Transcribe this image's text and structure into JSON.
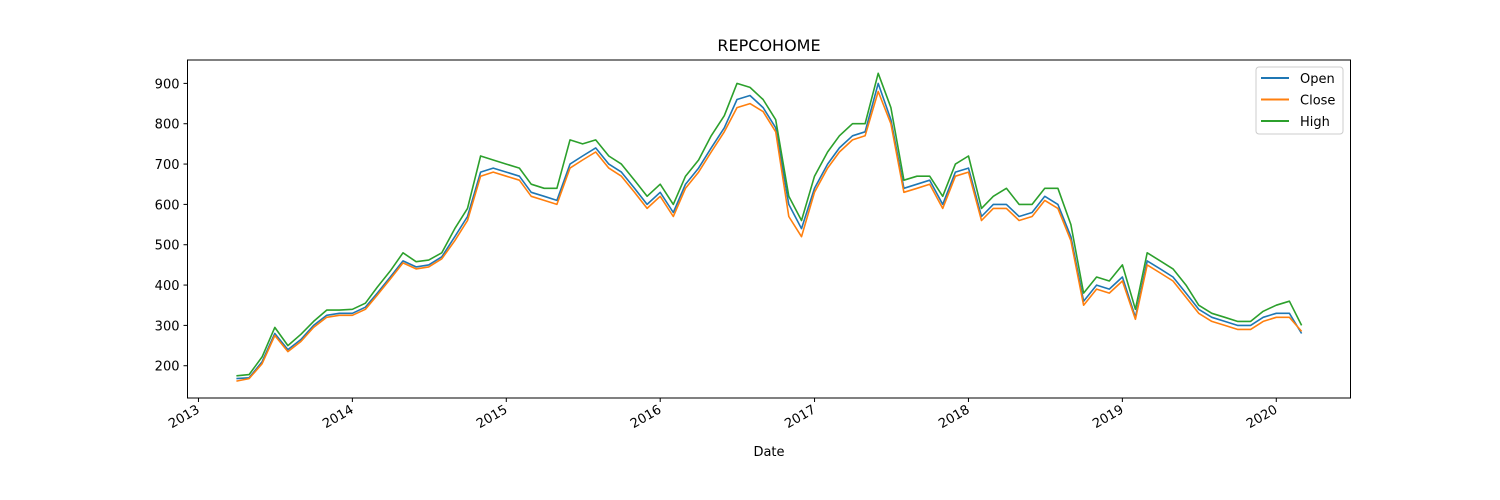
{
  "chart_data": {
    "type": "line",
    "title": "REPCOHOME",
    "xlabel": "Date",
    "ylabel": "",
    "xlim": [
      "2012-12-06",
      "2020-06-25"
    ],
    "ylim": [
      120,
      958
    ],
    "x_ticks": [
      "2013-01-01",
      "2014-01-01",
      "2015-01-01",
      "2016-01-01",
      "2017-01-01",
      "2018-01-01",
      "2019-01-01",
      "2020-01-01"
    ],
    "x_tick_labels": [
      "2013",
      "2014",
      "2015",
      "2016",
      "2017",
      "2018",
      "2019",
      "2020"
    ],
    "y_ticks": [
      200,
      300,
      400,
      500,
      600,
      700,
      800,
      900
    ],
    "y_tick_labels": [
      "200",
      "300",
      "400",
      "500",
      "600",
      "700",
      "800",
      "900"
    ],
    "grid": false,
    "legend": {
      "position": "top-right"
    },
    "x": [
      "2013-04-01",
      "2013-05-01",
      "2013-06-01",
      "2013-07-01",
      "2013-08-01",
      "2013-09-01",
      "2013-10-01",
      "2013-11-01",
      "2013-12-01",
      "2014-01-01",
      "2014-02-01",
      "2014-03-01",
      "2014-04-01",
      "2014-05-01",
      "2014-06-01",
      "2014-07-01",
      "2014-08-01",
      "2014-09-01",
      "2014-10-01",
      "2014-11-01",
      "2014-12-01",
      "2015-01-01",
      "2015-02-01",
      "2015-03-01",
      "2015-04-01",
      "2015-05-01",
      "2015-06-01",
      "2015-07-01",
      "2015-08-01",
      "2015-09-01",
      "2015-10-01",
      "2015-11-01",
      "2015-12-01",
      "2016-01-01",
      "2016-02-01",
      "2016-03-01",
      "2016-04-01",
      "2016-05-01",
      "2016-06-01",
      "2016-07-01",
      "2016-08-01",
      "2016-09-01",
      "2016-10-01",
      "2016-11-01",
      "2016-12-01",
      "2017-01-01",
      "2017-02-01",
      "2017-03-01",
      "2017-04-01",
      "2017-05-01",
      "2017-06-01",
      "2017-07-01",
      "2017-08-01",
      "2017-09-01",
      "2017-10-01",
      "2017-11-01",
      "2017-12-01",
      "2018-01-01",
      "2018-02-01",
      "2018-03-01",
      "2018-04-01",
      "2018-05-01",
      "2018-06-01",
      "2018-07-01",
      "2018-08-01",
      "2018-09-01",
      "2018-10-01",
      "2018-11-01",
      "2018-12-01",
      "2019-01-01",
      "2019-02-01",
      "2019-03-01",
      "2019-04-01",
      "2019-05-01",
      "2019-06-01",
      "2019-07-01",
      "2019-08-01",
      "2019-09-01",
      "2019-10-01",
      "2019-11-01",
      "2019-12-01",
      "2020-01-01",
      "2020-02-01",
      "2020-03-01"
    ],
    "series": [
      {
        "name": "Open",
        "color": "#1f77b4",
        "values": [
          168,
          170,
          210,
          280,
          240,
          265,
          300,
          325,
          330,
          330,
          345,
          380,
          420,
          460,
          445,
          450,
          470,
          520,
          570,
          680,
          690,
          680,
          670,
          630,
          620,
          610,
          700,
          720,
          740,
          700,
          680,
          640,
          600,
          630,
          580,
          650,
          690,
          740,
          790,
          860,
          870,
          840,
          790,
          600,
          540,
          640,
          700,
          740,
          770,
          780,
          900,
          810,
          640,
          650,
          660,
          600,
          680,
          690,
          570,
          600,
          600,
          570,
          580,
          620,
          600,
          520,
          360,
          400,
          390,
          420,
          320,
          460,
          440,
          420,
          380,
          340,
          320,
          310,
          300,
          300,
          320,
          330,
          330,
          280
        ]
      },
      {
        "name": "Close",
        "color": "#ff7f0e",
        "values": [
          162,
          168,
          205,
          275,
          235,
          260,
          295,
          320,
          325,
          325,
          340,
          375,
          415,
          455,
          440,
          445,
          465,
          510,
          560,
          670,
          680,
          670,
          660,
          620,
          610,
          600,
          690,
          710,
          730,
          690,
          670,
          630,
          590,
          620,
          570,
          640,
          680,
          730,
          780,
          840,
          850,
          830,
          780,
          570,
          520,
          630,
          690,
          730,
          760,
          770,
          880,
          800,
          630,
          640,
          650,
          590,
          670,
          680,
          560,
          590,
          590,
          560,
          570,
          610,
          590,
          510,
          350,
          390,
          380,
          410,
          315,
          450,
          430,
          410,
          370,
          330,
          310,
          300,
          290,
          290,
          310,
          320,
          320,
          285
        ]
      },
      {
        "name": "High",
        "color": "#2ca02c",
        "values": [
          175,
          178,
          222,
          295,
          250,
          278,
          310,
          338,
          338,
          340,
          355,
          395,
          435,
          480,
          458,
          462,
          480,
          540,
          590,
          720,
          710,
          700,
          690,
          650,
          640,
          640,
          760,
          750,
          760,
          720,
          700,
          660,
          620,
          650,
          600,
          670,
          710,
          770,
          820,
          900,
          890,
          860,
          810,
          620,
          560,
          670,
          730,
          770,
          800,
          800,
          925,
          840,
          660,
          670,
          670,
          620,
          700,
          720,
          590,
          620,
          640,
          600,
          600,
          640,
          640,
          550,
          380,
          420,
          410,
          450,
          340,
          480,
          460,
          440,
          400,
          350,
          330,
          320,
          310,
          310,
          335,
          350,
          360,
          300
        ]
      }
    ]
  }
}
